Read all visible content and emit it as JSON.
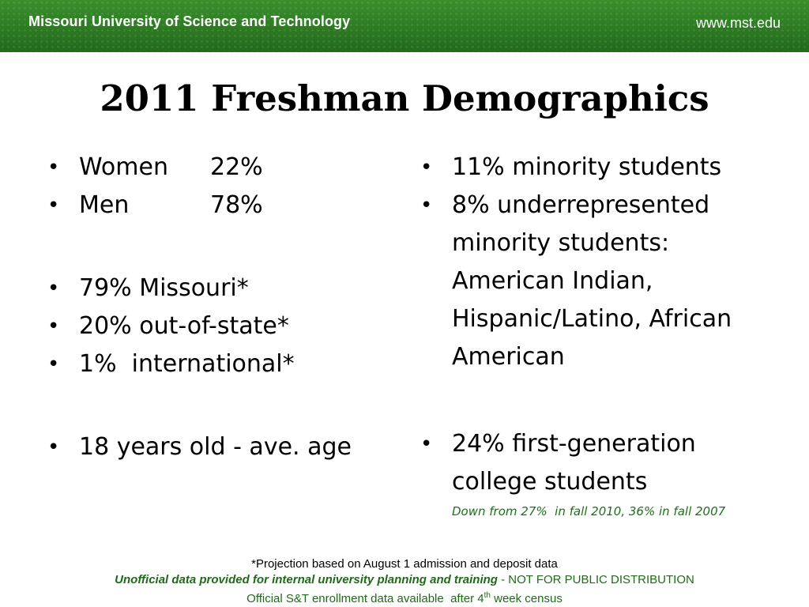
{
  "header": {
    "institution": "Missouri University of Science and Technology",
    "url": "www.mst.edu"
  },
  "title": "2011 Freshman Demographics",
  "left": {
    "women_label": "Women",
    "women_value": "22%",
    "men_label": "Men",
    "men_value": "78%",
    "missouri": "79% Missouri*",
    "out_of_state": "20% out-of-state*",
    "international": "1%  international*",
    "age": "18 years old - ave. age"
  },
  "right": {
    "minority": "11% minority students",
    "underrepresented": "8% underrepresented minority students: American Indian, Hispanic/Latino, African American",
    "first_gen": "24% first-generation college students",
    "first_gen_note": "Down from 27%  in fall 2010, 36% in fall 2007"
  },
  "footer": {
    "projection": "*Projection based on August 1 admission and deposit data",
    "unofficial": "Unofficial data provided for internal university planning and training",
    "not_public": " - NOT FOR PUBLIC DISTRIBUTION",
    "official_prefix": "Official S&T enrollment data available  after 4",
    "official_sup": "th",
    "official_suffix": " week census"
  },
  "colors": {
    "banner": "#2d7a23",
    "note_green": "#1f6e19"
  }
}
